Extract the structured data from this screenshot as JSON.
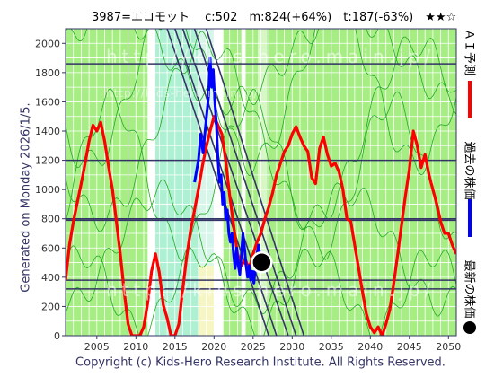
{
  "header": {
    "title": "3987=エコモット　 c:502　m:824(+64%)　t:187(-63%)　★★☆"
  },
  "side_label": "Generated on Monday 2026/1/5.",
  "footer": {
    "copyright": "Copyright (c) Kids-Hero Research Institute. All Rights Reserved."
  },
  "watermark": {
    "text": "http://kids-hero.main.jp/"
  },
  "legend": [
    {
      "label": "ＡＩ予測",
      "color": "#ff0000"
    },
    {
      "label": "過去の株価",
      "color": "#0000ff"
    },
    {
      "label": "最新の株価",
      "color": "#000000"
    }
  ],
  "chart_data": {
    "type": "line",
    "title": "",
    "xlabel": "",
    "ylabel": "",
    "xlim": [
      2001,
      2051
    ],
    "ylim": [
      0,
      2100
    ],
    "x_ticks": [
      2005,
      2010,
      2015,
      2020,
      2025,
      2030,
      2035,
      2040,
      2045,
      2050
    ],
    "y_ticks": [
      0,
      200,
      400,
      600,
      800,
      1000,
      1200,
      1400,
      1600,
      1800,
      2000
    ],
    "horizontal_levels": [
      1860,
      1200,
      800,
      790,
      380,
      320
    ],
    "green_bands": [
      [
        2001,
        2011.5
      ],
      [
        2020.5,
        2023.5
      ],
      [
        2024,
        2051
      ]
    ],
    "cyan_band": [
      2012.5,
      2020.5
    ],
    "series": [
      {
        "name": "ＡＩ予測",
        "color": "#ff0000",
        "points": [
          [
            2001,
            380
          ],
          [
            2001.5,
            620
          ],
          [
            2002,
            780
          ],
          [
            2002.5,
            910
          ],
          [
            2003,
            1040
          ],
          [
            2003.5,
            1180
          ],
          [
            2004,
            1330
          ],
          [
            2004.5,
            1440
          ],
          [
            2005,
            1400
          ],
          [
            2005.5,
            1460
          ],
          [
            2006,
            1330
          ],
          [
            2006.5,
            1160
          ],
          [
            2007,
            1000
          ],
          [
            2007.5,
            780
          ],
          [
            2008,
            560
          ],
          [
            2008.5,
            300
          ],
          [
            2009,
            80
          ],
          [
            2009.5,
            0
          ],
          [
            2010.5,
            0
          ],
          [
            2011,
            60
          ],
          [
            2011.5,
            220
          ],
          [
            2012,
            440
          ],
          [
            2012.5,
            560
          ],
          [
            2013,
            430
          ],
          [
            2013.5,
            210
          ],
          [
            2014,
            120
          ],
          [
            2014.5,
            0
          ],
          [
            2015,
            0
          ],
          [
            2015.5,
            80
          ],
          [
            2016,
            320
          ],
          [
            2016.5,
            540
          ],
          [
            2017,
            720
          ],
          [
            2017.5,
            860
          ],
          [
            2018,
            1000
          ],
          [
            2018.5,
            1160
          ],
          [
            2019,
            1290
          ],
          [
            2019.5,
            1400
          ],
          [
            2020,
            1500
          ],
          [
            2020.5,
            1440
          ],
          [
            2021,
            1380
          ],
          [
            2021.5,
            1200
          ],
          [
            2022,
            960
          ],
          [
            2022.5,
            760
          ],
          [
            2023,
            560
          ],
          [
            2023.5,
            480
          ],
          [
            2024,
            520
          ],
          [
            2024.5,
            460
          ],
          [
            2025,
            560
          ],
          [
            2025.5,
            640
          ],
          [
            2026,
            700
          ],
          [
            2026.5,
            800
          ],
          [
            2027,
            880
          ],
          [
            2027.5,
            980
          ],
          [
            2028,
            1100
          ],
          [
            2028.5,
            1180
          ],
          [
            2029,
            1260
          ],
          [
            2029.5,
            1300
          ],
          [
            2030,
            1380
          ],
          [
            2030.5,
            1430
          ],
          [
            2031,
            1360
          ],
          [
            2031.5,
            1300
          ],
          [
            2032,
            1260
          ],
          [
            2032.5,
            1080
          ],
          [
            2033,
            1040
          ],
          [
            2033.5,
            1280
          ],
          [
            2034,
            1360
          ],
          [
            2034.5,
            1240
          ],
          [
            2035,
            1160
          ],
          [
            2035.5,
            1180
          ],
          [
            2036,
            1120
          ],
          [
            2036.5,
            1000
          ],
          [
            2037,
            800
          ],
          [
            2037.5,
            780
          ],
          [
            2038,
            620
          ],
          [
            2038.5,
            460
          ],
          [
            2039,
            300
          ],
          [
            2039.5,
            150
          ],
          [
            2040,
            60
          ],
          [
            2040.5,
            20
          ],
          [
            2041,
            60
          ],
          [
            2041.5,
            0
          ],
          [
            2042,
            80
          ],
          [
            2042.5,
            180
          ],
          [
            2043,
            360
          ],
          [
            2043.5,
            560
          ],
          [
            2044,
            760
          ],
          [
            2044.5,
            960
          ],
          [
            2045,
            1140
          ],
          [
            2045.5,
            1400
          ],
          [
            2046,
            1300
          ],
          [
            2046.5,
            1150
          ],
          [
            2047,
            1240
          ],
          [
            2047.5,
            1100
          ],
          [
            2048,
            1000
          ],
          [
            2048.5,
            900
          ],
          [
            2049,
            780
          ],
          [
            2049.5,
            700
          ],
          [
            2050,
            700
          ],
          [
            2050.5,
            620
          ],
          [
            2051,
            560
          ]
        ]
      },
      {
        "name": "過去の株価",
        "color": "#0000ff",
        "points": [
          [
            2017.5,
            1050
          ],
          [
            2018,
            1200
          ],
          [
            2018.3,
            1380
          ],
          [
            2018.6,
            1250
          ],
          [
            2019,
            1480
          ],
          [
            2019.3,
            1640
          ],
          [
            2019.5,
            1900
          ],
          [
            2019.7,
            1700
          ],
          [
            2019.9,
            1820
          ],
          [
            2020.1,
            1600
          ],
          [
            2020.3,
            1450
          ],
          [
            2020.5,
            1200
          ],
          [
            2020.7,
            1050
          ],
          [
            2020.9,
            1100
          ],
          [
            2021.1,
            900
          ],
          [
            2021.3,
            980
          ],
          [
            2021.5,
            800
          ],
          [
            2021.7,
            860
          ],
          [
            2021.9,
            700
          ],
          [
            2022.1,
            640
          ],
          [
            2022.3,
            700
          ],
          [
            2022.5,
            560
          ],
          [
            2022.7,
            460
          ],
          [
            2022.9,
            600
          ],
          [
            2023.1,
            480
          ],
          [
            2023.3,
            420
          ],
          [
            2023.5,
            560
          ],
          [
            2023.7,
            700
          ],
          [
            2023.9,
            600
          ],
          [
            2024.1,
            480
          ],
          [
            2024.3,
            400
          ],
          [
            2024.5,
            480
          ],
          [
            2024.7,
            380
          ],
          [
            2024.9,
            440
          ],
          [
            2025.1,
            360
          ],
          [
            2025.3,
            480
          ],
          [
            2025.5,
            560
          ],
          [
            2025.7,
            620
          ],
          [
            2025.9,
            540
          ],
          [
            2026.0,
            502
          ]
        ]
      }
    ],
    "latest_price": {
      "x": 2026.1,
      "y": 502
    }
  }
}
